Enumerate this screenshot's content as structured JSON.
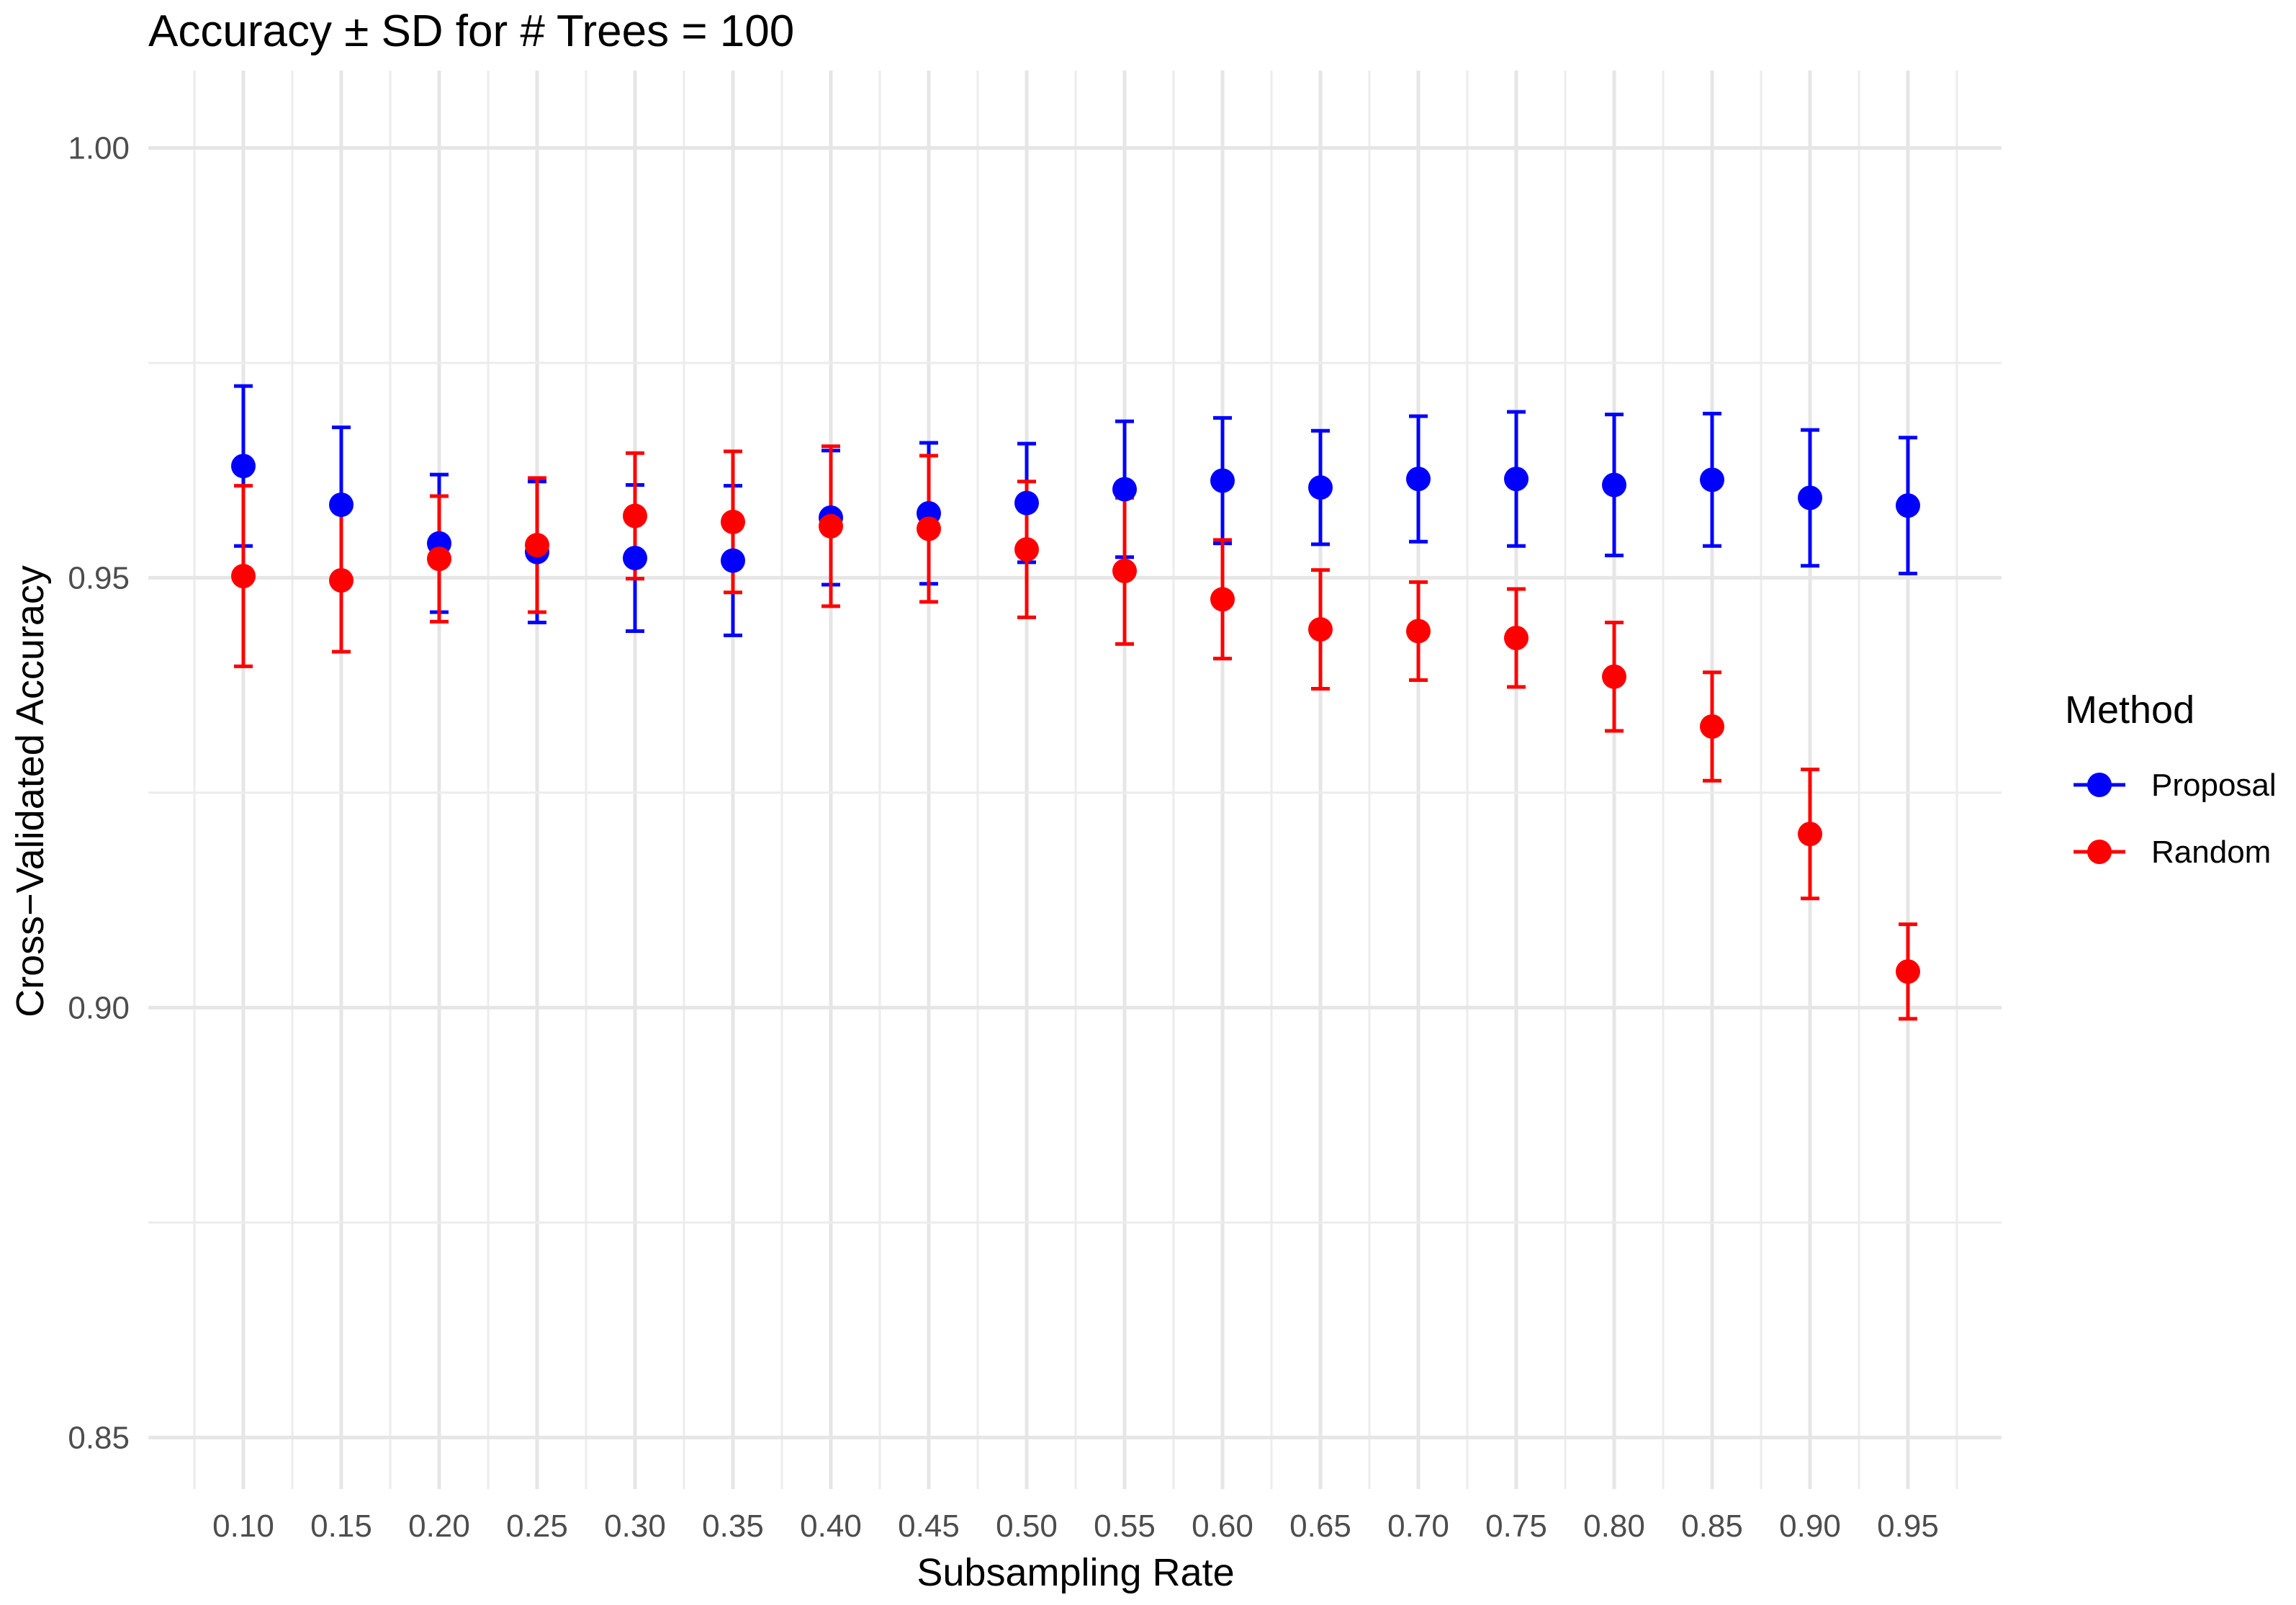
{
  "chart_data": {
    "type": "scatter",
    "title": "Accuracy ± SD for # Trees = 100",
    "xlabel": "Subsampling Rate",
    "ylabel": "Cross−Validated Accuracy",
    "x": [
      "0.10",
      "0.15",
      "0.20",
      "0.25",
      "0.30",
      "0.35",
      "0.40",
      "0.45",
      "0.50",
      "0.55",
      "0.60",
      "0.65",
      "0.70",
      "0.75",
      "0.80",
      "0.85",
      "0.90",
      "0.95"
    ],
    "y_ticks": [
      "0.85",
      "0.90",
      "0.95",
      "1.00"
    ],
    "ylim": [
      0.844,
      1.009
    ],
    "grid": true,
    "legend": {
      "title": "Method",
      "position": "right"
    },
    "series": [
      {
        "name": "Proposal",
        "color": "#0000ff",
        "mean": [
          0.963,
          0.9585,
          0.954,
          0.953,
          0.9523,
          0.952,
          0.957,
          0.9575,
          0.9587,
          0.9603,
          0.9613,
          0.9605,
          0.9615,
          0.9615,
          0.9608,
          0.9614,
          0.9593,
          0.9584
        ],
        "sd": [
          0.0093,
          0.009,
          0.008,
          0.0082,
          0.0085,
          0.0087,
          0.0078,
          0.0082,
          0.0069,
          0.0079,
          0.0073,
          0.0066,
          0.0073,
          0.0078,
          0.0082,
          0.0077,
          0.0079,
          0.0079
        ]
      },
      {
        "name": "Random",
        "color": "#ff0000",
        "mean": [
          0.9502,
          0.9497,
          0.9522,
          0.9538,
          0.9572,
          0.9565,
          0.956,
          0.9557,
          0.9533,
          0.9508,
          0.9475,
          0.944,
          0.9438,
          0.943,
          0.9385,
          0.9327,
          0.9202,
          0.9042
        ],
        "sd": [
          0.0105,
          0.0083,
          0.0073,
          0.0078,
          0.0073,
          0.0082,
          0.0093,
          0.0085,
          0.0079,
          0.0085,
          0.0069,
          0.0069,
          0.0057,
          0.0057,
          0.0063,
          0.0063,
          0.0075,
          0.0055
        ]
      }
    ]
  }
}
